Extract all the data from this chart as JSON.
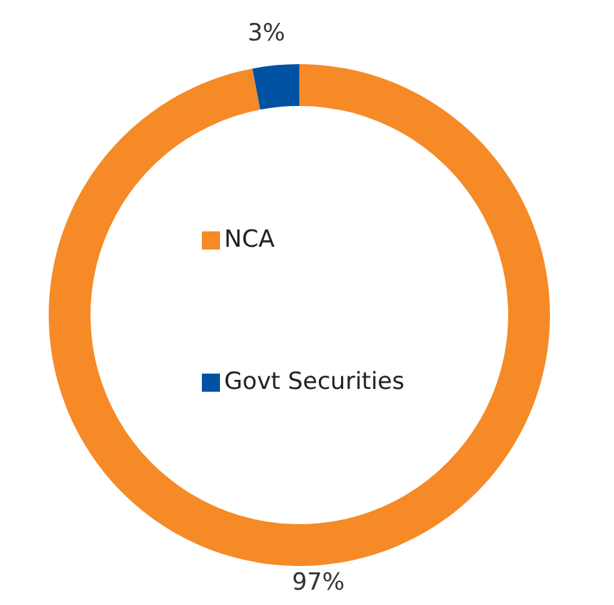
{
  "chart_data": {
    "type": "donut",
    "categories": [
      "NCA",
      "Govt Securities"
    ],
    "values": [
      97,
      3
    ],
    "colors": [
      "#f58a27",
      "#0052a3"
    ],
    "value_labels": [
      "97%",
      "3%"
    ],
    "legend": "center"
  }
}
